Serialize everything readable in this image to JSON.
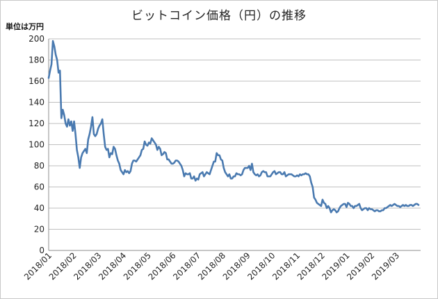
{
  "chart_data": {
    "type": "line",
    "title": "ビットコイン価格（円）の推移",
    "unit_label": "単位は万円",
    "ylim": [
      0,
      200
    ],
    "y_ticks": [
      0,
      20,
      40,
      60,
      80,
      100,
      120,
      140,
      160,
      180,
      200
    ],
    "x_tick_labels": [
      "2018/01",
      "2018/02",
      "2018/03",
      "2018/04",
      "2018/05",
      "2018/06",
      "2018/07",
      "2018/08",
      "2018/09",
      "2018/10",
      "2018/11",
      "2018/12",
      "2019/01",
      "2019/02",
      "2019/03"
    ],
    "grid": true,
    "legend": "none",
    "color": "#4a7ab0",
    "series": [
      {
        "values": [
          163,
          170,
          176,
          198,
          193,
          185,
          180,
          168,
          170,
          125,
          133,
          128,
          120,
          117,
          124,
          118,
          122,
          113,
          122,
          110,
          95,
          88,
          78,
          88,
          92,
          94,
          96,
          92,
          105,
          110,
          117,
          126,
          110,
          108,
          110,
          115,
          118,
          120,
          124,
          110,
          98,
          95,
          96,
          88,
          92,
          91,
          98,
          96,
          90,
          85,
          82,
          76,
          74,
          72,
          76,
          74,
          75,
          73,
          75,
          82,
          85,
          85,
          84,
          86,
          88,
          90,
          95,
          96,
          103,
          100,
          99,
          102,
          101,
          106,
          104,
          102,
          100,
          95,
          98,
          96,
          90,
          91,
          93,
          92,
          86,
          86,
          84,
          82,
          82,
          83,
          85,
          85,
          84,
          82,
          80,
          76,
          70,
          73,
          72,
          72,
          73,
          68,
          68,
          70,
          66,
          68,
          67,
          72,
          73,
          74,
          70,
          72,
          74,
          73,
          72,
          76,
          80,
          84,
          84,
          92,
          90,
          90,
          86,
          85,
          78,
          74,
          72,
          70,
          72,
          68,
          68,
          70,
          70,
          73,
          72,
          72,
          71,
          72,
          76,
          78,
          78,
          78,
          80,
          76,
          82,
          74,
          72,
          71,
          72,
          70,
          71,
          74,
          75,
          74,
          74,
          70,
          70,
          70,
          72,
          74,
          75,
          72,
          73,
          74,
          74,
          72,
          72,
          74,
          70,
          71,
          72,
          72,
          72,
          71,
          70,
          70,
          71,
          70,
          72,
          71,
          72,
          72,
          73,
          72,
          72,
          70,
          64,
          60,
          50,
          48,
          45,
          44,
          43,
          42,
          48,
          45,
          44,
          40,
          42,
          40,
          36,
          38,
          39,
          38,
          36,
          37,
          40,
          42,
          43,
          44,
          44,
          41,
          45,
          44,
          42,
          42,
          40,
          42,
          42,
          43,
          44,
          40,
          38,
          39,
          40,
          40,
          38,
          40,
          39,
          39,
          38,
          37,
          38,
          38,
          37,
          37,
          38,
          38,
          40,
          40,
          41,
          42,
          43,
          42,
          43,
          44,
          43,
          42,
          42,
          41,
          42,
          43,
          42,
          43,
          42,
          42,
          43,
          43,
          42,
          43,
          44,
          44,
          43
        ]
      }
    ]
  }
}
